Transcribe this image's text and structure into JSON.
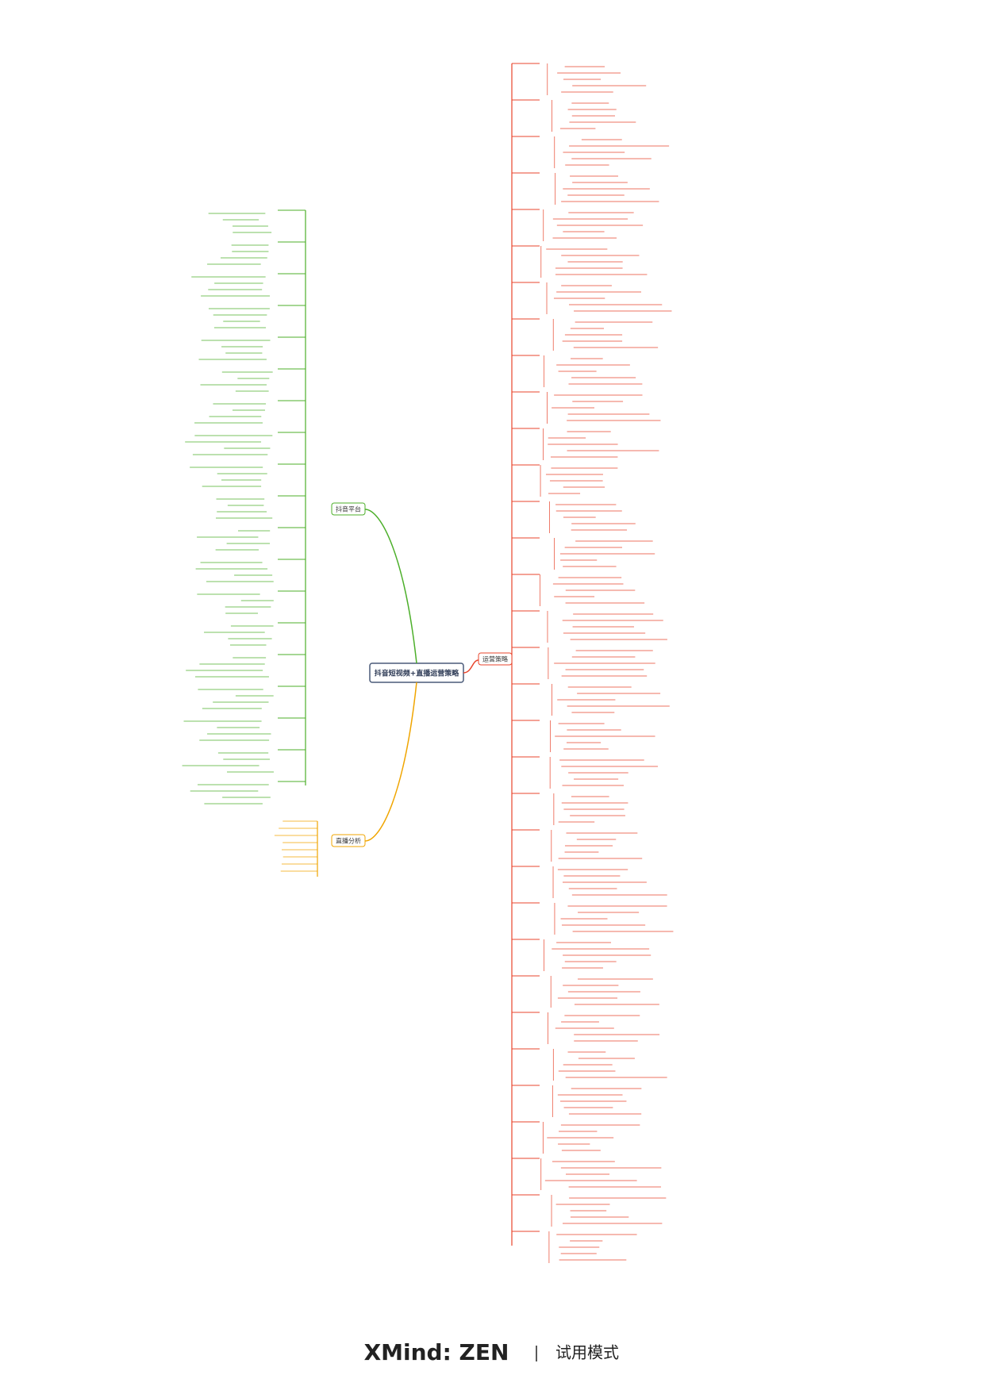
{
  "central": "抖音短视频+直播运营策略",
  "branches": [
    {
      "label": "运营策略"
    },
    {
      "label": "抖音平台"
    },
    {
      "label": "直播分析"
    }
  ],
  "watermark": {
    "brand": "XMind: ZEN",
    "mode": "试用模式"
  }
}
